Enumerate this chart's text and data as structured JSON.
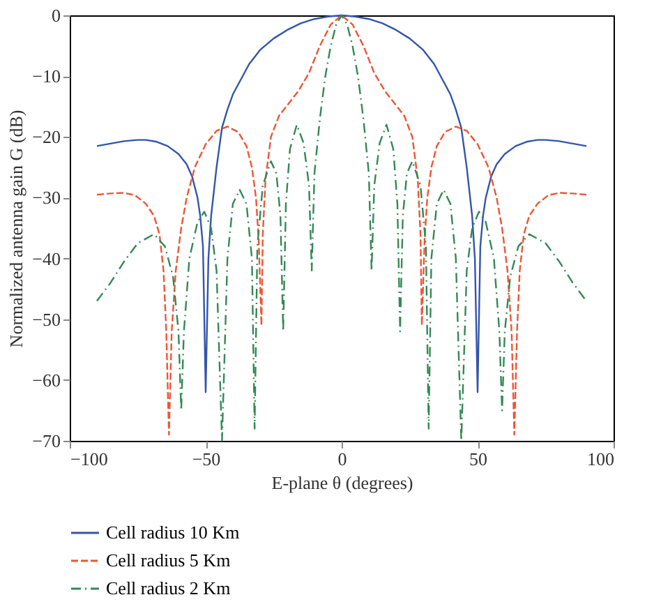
{
  "chart_data": {
    "type": "line",
    "xlabel": "E-plane θ (degrees)",
    "ylabel": "Normalized antenna gain G (dB)",
    "xlim": [
      -100,
      100
    ],
    "xticks": [
      -100,
      -50,
      0,
      50,
      100
    ],
    "ylim": [
      -70,
      0
    ],
    "yticks": [
      -70,
      -60,
      -50,
      -40,
      -30,
      -20,
      -10,
      0
    ],
    "grid": false,
    "legend": "bottom left",
    "marker": "none",
    "series": [
      {
        "name": "Cell radius 10 Km",
        "color": "#3355aa",
        "line_style": "solid",
        "x": [
          -90,
          -85,
          -80,
          -75,
          -72,
          -68,
          -64,
          -60,
          -57,
          -55,
          -53,
          -52,
          -51,
          -50,
          -49,
          -48,
          -46,
          -44,
          -42,
          -40,
          -37,
          -34,
          -30,
          -25,
          -20,
          -15,
          -10,
          -5,
          0,
          5,
          10,
          15,
          20,
          25,
          30,
          34,
          37,
          40,
          42,
          44,
          46,
          48,
          49,
          50,
          51,
          52,
          53,
          55,
          57,
          60,
          64,
          68,
          72,
          75,
          80,
          85,
          90
        ],
        "values": [
          -21.5,
          -21.1,
          -20.7,
          -20.5,
          -20.5,
          -20.8,
          -21.5,
          -22.8,
          -24.5,
          -26.5,
          -30,
          -33,
          -38,
          -62,
          -40,
          -33,
          -25,
          -18.5,
          -15.5,
          -13,
          -10.5,
          -8,
          -5.7,
          -3.8,
          -2.4,
          -1.3,
          -0.6,
          -0.2,
          0,
          -0.2,
          -0.6,
          -1.3,
          -2.4,
          -3.8,
          -5.7,
          -8,
          -10.5,
          -13,
          -15.5,
          -18.5,
          -25,
          -33,
          -40,
          -62,
          -38,
          -33,
          -30,
          -26.5,
          -24.5,
          -22.8,
          -21.5,
          -20.8,
          -20.5,
          -20.5,
          -20.7,
          -21.1,
          -21.5
        ]
      },
      {
        "name": "Cell radius 5 Km",
        "color": "#ee5533",
        "line_style": "dashed",
        "x": [
          -90,
          -85,
          -80,
          -76,
          -72,
          -69,
          -67,
          -65.5,
          -64.5,
          -63.5,
          -62.5,
          -61,
          -59,
          -57,
          -54,
          -50,
          -46,
          -42,
          -38,
          -35,
          -33,
          -31.5,
          -30.5,
          -29.5,
          -29,
          -28,
          -26,
          -23,
          -20,
          -16,
          -12,
          -8,
          -4,
          0,
          4,
          8,
          12,
          16,
          20,
          23,
          26,
          28,
          29,
          29.5,
          30.5,
          31.5,
          33,
          35,
          38,
          42,
          46,
          50,
          54,
          57,
          59,
          61,
          62.5,
          63.5,
          64.5,
          65.5,
          67,
          69,
          72,
          76,
          80,
          85,
          90
        ],
        "values": [
          -29.5,
          -29.3,
          -29.2,
          -29.6,
          -31,
          -33,
          -36,
          -42,
          -52,
          -69,
          -52,
          -42,
          -35,
          -30,
          -25,
          -21.2,
          -19,
          -18.3,
          -19.2,
          -21.5,
          -25,
          -30,
          -37,
          -51,
          -36,
          -27,
          -20,
          -16.5,
          -14.8,
          -12.5,
          -9.5,
          -5,
          -1.5,
          0,
          -1.5,
          -5,
          -9.5,
          -12.5,
          -14.8,
          -16.5,
          -20,
          -27,
          -36,
          -51,
          -37,
          -30,
          -25,
          -21.5,
          -19.2,
          -18.3,
          -19,
          -21.2,
          -25,
          -30,
          -35,
          -42,
          -52,
          -69,
          -52,
          -42,
          -36,
          -33,
          -31,
          -29.6,
          -29.2,
          -29.3,
          -29.5
        ]
      },
      {
        "name": "Cell radius 2 Km",
        "color": "#338855",
        "line_style": "dotted",
        "x": [
          -90,
          -85,
          -80,
          -75,
          -69,
          -65,
          -62,
          -60,
          -59,
          -58,
          -56,
          -53,
          -50.5,
          -48,
          -46,
          -44,
          -42,
          -40,
          -37.5,
          -35,
          -33,
          -32,
          -31,
          -29,
          -26,
          -24,
          -22.5,
          -21.5,
          -20.5,
          -19,
          -16.5,
          -14,
          -12,
          -11,
          -10,
          -8,
          -6,
          -4,
          -2,
          0,
          2,
          4,
          6,
          8,
          10,
          11,
          12,
          14,
          16.5,
          19,
          20.5,
          21.5,
          22.5,
          24,
          26,
          29,
          31,
          32,
          33,
          35,
          37.5,
          40,
          42,
          44,
          46,
          48,
          50.5,
          53,
          56,
          58,
          59,
          60,
          62,
          65,
          69,
          75,
          80,
          85,
          90
        ],
        "values": [
          -47,
          -44,
          -40.5,
          -37.5,
          -36,
          -38,
          -43,
          -52,
          -65,
          -52,
          -40,
          -34,
          -32.3,
          -35,
          -42,
          -70,
          -40,
          -31,
          -28.7,
          -31,
          -40,
          -68,
          -38,
          -28,
          -24,
          -26,
          -33,
          -52,
          -31,
          -22,
          -18,
          -21,
          -28,
          -42,
          -26,
          -17,
          -10,
          -5,
          -1.5,
          0,
          -1.5,
          -5,
          -10,
          -17,
          -26,
          -42,
          -28,
          -21,
          -18,
          -22,
          -31,
          -52,
          -33,
          -26,
          -24,
          -28,
          -38,
          -68,
          -40,
          -31,
          -28.7,
          -31,
          -40,
          -70,
          -42,
          -35,
          -32.3,
          -34,
          -40,
          -52,
          -65,
          -52,
          -43,
          -38,
          -36,
          -37.5,
          -40.5,
          -44,
          -47
        ]
      }
    ]
  }
}
